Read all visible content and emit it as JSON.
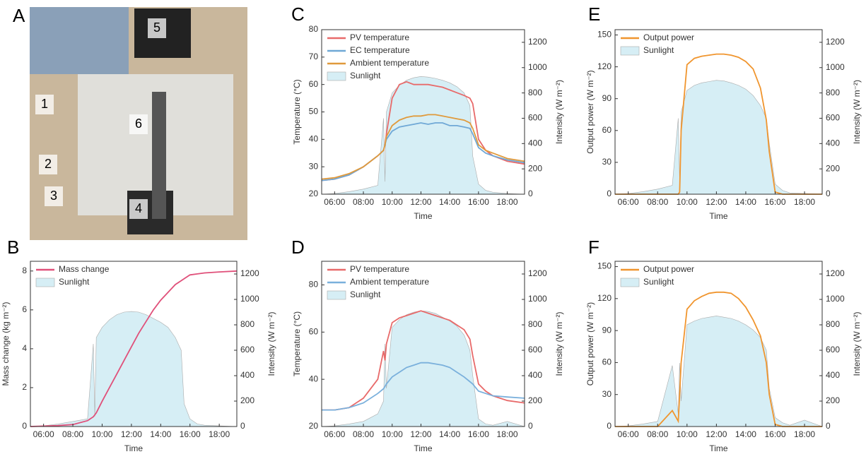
{
  "photo": {
    "panel_label": "A",
    "labels": [
      "1",
      "2",
      "3",
      "4",
      "5",
      "6"
    ]
  },
  "chart_data": [
    {
      "type": "line",
      "panel_label": "B",
      "xlabel": "Time",
      "ylabel": "Mass change (kg m⁻²)",
      "y2label": "Intensity (W m⁻²)",
      "xlim": [
        5.1,
        19.2
      ],
      "xticks": [
        {
          "value": 6,
          "label": "06:00"
        },
        {
          "value": 8,
          "label": "08:00"
        },
        {
          "value": 10,
          "label": "10:00"
        },
        {
          "value": 12,
          "label": "12:00"
        },
        {
          "value": 14,
          "label": "14:00"
        },
        {
          "value": 16,
          "label": "16:00"
        },
        {
          "value": 18,
          "label": "18:00"
        }
      ],
      "ylim": [
        0,
        8.5
      ],
      "yticks": [
        0,
        2,
        4,
        6,
        8
      ],
      "y2lim": [
        0,
        1300
      ],
      "y2ticks": [
        0,
        200,
        400,
        600,
        800,
        1000,
        1200
      ],
      "x": [
        5.1,
        6,
        7,
        8,
        9,
        9.4,
        9.5,
        9.6,
        10,
        10.5,
        11,
        11.5,
        12,
        12.5,
        13,
        13.5,
        14,
        14.5,
        15,
        15.4,
        15.6,
        16,
        16.5,
        17,
        18,
        19.2
      ],
      "series": [
        {
          "name": "Mass change",
          "color": "#e0507a",
          "values": [
            0,
            0.02,
            0.05,
            0.1,
            0.3,
            0.5,
            0.6,
            0.7,
            1.3,
            2.0,
            2.7,
            3.4,
            4.1,
            4.8,
            5.4,
            6.0,
            6.5,
            6.9,
            7.3,
            7.5,
            7.6,
            7.8,
            7.85,
            7.9,
            7.95,
            8.0
          ]
        },
        {
          "name": "Sunlight",
          "color": "#d6eef5",
          "style": "area",
          "axis": "y2",
          "values": [
            0,
            5,
            20,
            40,
            60,
            650,
            80,
            700,
            780,
            840,
            880,
            900,
            905,
            900,
            880,
            850,
            820,
            780,
            700,
            600,
            180,
            60,
            20,
            10,
            5,
            0
          ]
        }
      ]
    },
    {
      "type": "line",
      "panel_label": "C",
      "xlabel": "Time",
      "ylabel": "Temperature (°C)",
      "y2label": "Intensity (W m⁻²)",
      "xlim": [
        5.1,
        19.2
      ],
      "xticks": [
        {
          "value": 6,
          "label": "06:00"
        },
        {
          "value": 8,
          "label": "08:00"
        },
        {
          "value": 10,
          "label": "10:00"
        },
        {
          "value": 12,
          "label": "12:00"
        },
        {
          "value": 14,
          "label": "14:00"
        },
        {
          "value": 16,
          "label": "16:00"
        },
        {
          "value": 18,
          "label": "18:00"
        }
      ],
      "ylim": [
        20,
        80
      ],
      "yticks": [
        20,
        30,
        40,
        50,
        60,
        70,
        80
      ],
      "y2lim": [
        0,
        1300
      ],
      "y2ticks": [
        0,
        200,
        400,
        600,
        800,
        1000,
        1200
      ],
      "x": [
        5.1,
        6,
        7,
        8,
        9,
        9.4,
        9.5,
        9.6,
        10,
        10.5,
        11,
        11.5,
        12,
        12.5,
        13,
        13.5,
        14,
        14.5,
        15,
        15.4,
        15.6,
        16,
        16.5,
        17,
        18,
        19.2
      ],
      "series": [
        {
          "name": "PV temperature",
          "color": "#e86a6a",
          "values": [
            25,
            25.5,
            27,
            30,
            34,
            36,
            38,
            42,
            55,
            60,
            61,
            60,
            60,
            60,
            59.5,
            59,
            58,
            57,
            56,
            55,
            53,
            40,
            36,
            34,
            32,
            31
          ]
        },
        {
          "name": "EC temperature",
          "color": "#6fa8d6",
          "values": [
            25,
            25.5,
            27,
            30,
            34,
            36,
            38,
            40,
            43,
            44.5,
            45,
            45.5,
            46,
            45.5,
            46,
            46,
            45,
            45,
            44.5,
            44,
            42,
            37,
            35,
            34,
            32.5,
            31.5
          ]
        },
        {
          "name": "Ambient temperature",
          "color": "#e09a3c",
          "values": [
            25.5,
            26,
            27.5,
            30,
            34,
            36,
            38,
            41,
            45,
            47,
            48,
            48.5,
            48.5,
            49,
            49,
            48.5,
            48,
            47.5,
            47,
            46,
            44,
            38,
            36,
            35,
            33,
            32
          ]
        },
        {
          "name": "Sunlight",
          "color": "#d6eef5",
          "style": "area",
          "axis": "y2",
          "values": [
            0,
            5,
            20,
            40,
            70,
            600,
            100,
            650,
            800,
            860,
            900,
            920,
            930,
            925,
            915,
            900,
            880,
            850,
            800,
            700,
            300,
            80,
            30,
            15,
            5,
            0
          ]
        }
      ]
    },
    {
      "type": "line",
      "panel_label": "D",
      "xlabel": "Time",
      "ylabel": "Temperature (°C)",
      "y2label": "Intensity (W m⁻²)",
      "xlim": [
        5.1,
        19.2
      ],
      "xticks": [
        {
          "value": 6,
          "label": "06:00"
        },
        {
          "value": 8,
          "label": "08:00"
        },
        {
          "value": 10,
          "label": "10:00"
        },
        {
          "value": 12,
          "label": "12:00"
        },
        {
          "value": 14,
          "label": "14:00"
        },
        {
          "value": 16,
          "label": "16:00"
        },
        {
          "value": 18,
          "label": "18:00"
        }
      ],
      "ylim": [
        20,
        90
      ],
      "yticks": [
        20,
        40,
        60,
        80
      ],
      "y2lim": [
        0,
        1300
      ],
      "y2ticks": [
        0,
        200,
        400,
        600,
        800,
        1000,
        1200
      ],
      "x": [
        5.1,
        6,
        7,
        8,
        9,
        9.4,
        9.5,
        9.6,
        10,
        10.5,
        11,
        11.5,
        12,
        12.5,
        13,
        13.5,
        14,
        14.5,
        15,
        15.4,
        15.6,
        16,
        16.5,
        17,
        18,
        19.2
      ],
      "series": [
        {
          "name": "PV temperature",
          "color": "#e86a6a",
          "values": [
            27,
            27,
            28,
            32,
            40,
            52,
            48,
            55,
            64,
            66,
            67,
            68,
            69,
            68,
            67,
            66,
            65,
            63,
            61,
            57,
            50,
            38,
            35,
            33,
            31,
            30
          ]
        },
        {
          "name": "Ambient temperature",
          "color": "#7ab0dc",
          "values": [
            27,
            27,
            28,
            30,
            34,
            36,
            37,
            38,
            41,
            43,
            45,
            46,
            47,
            47,
            46.5,
            46,
            45,
            43,
            41,
            39,
            38,
            35,
            34,
            33,
            32.5,
            32
          ]
        },
        {
          "name": "Sunlight",
          "color": "#d6eef5",
          "style": "area",
          "axis": "y2",
          "values": [
            0,
            5,
            20,
            40,
            100,
            200,
            650,
            300,
            780,
            840,
            880,
            900,
            910,
            905,
            890,
            860,
            830,
            790,
            720,
            600,
            400,
            60,
            20,
            10,
            40,
            0
          ]
        }
      ]
    },
    {
      "type": "line",
      "panel_label": "E",
      "xlabel": "Time",
      "ylabel": "Output power (W m⁻²)",
      "y2label": "Intensity (W m⁻²)",
      "xlim": [
        5.1,
        19.2
      ],
      "xticks": [
        {
          "value": 6,
          "label": "06:00"
        },
        {
          "value": 8,
          "label": "08:00"
        },
        {
          "value": 10,
          "label": "10:00"
        },
        {
          "value": 12,
          "label": "12:00"
        },
        {
          "value": 14,
          "label": "14:00"
        },
        {
          "value": 16,
          "label": "16:00"
        },
        {
          "value": 18,
          "label": "18:00"
        }
      ],
      "ylim": [
        0,
        155
      ],
      "yticks": [
        0,
        30,
        60,
        90,
        120,
        150
      ],
      "y2lim": [
        0,
        1300
      ],
      "y2ticks": [
        0,
        200,
        400,
        600,
        800,
        1000,
        1200
      ],
      "x": [
        5.1,
        6,
        7,
        8,
        9,
        9.4,
        9.5,
        9.6,
        10,
        10.5,
        11,
        11.5,
        12,
        12.5,
        13,
        13.5,
        14,
        14.5,
        15,
        15.4,
        15.6,
        16,
        16.5,
        17,
        18,
        19.2
      ],
      "series": [
        {
          "name": "Output power",
          "color": "#f0952e",
          "values": [
            0,
            0,
            0,
            0,
            0,
            0,
            2,
            60,
            122,
            128,
            130,
            131,
            132,
            132,
            131,
            129,
            125,
            118,
            100,
            70,
            40,
            2,
            0,
            0,
            0,
            0
          ]
        },
        {
          "name": "Sunlight",
          "color": "#d6eef5",
          "style": "area",
          "axis": "y2",
          "values": [
            0,
            5,
            20,
            40,
            70,
            600,
            100,
            650,
            820,
            860,
            880,
            890,
            900,
            895,
            880,
            860,
            830,
            780,
            700,
            600,
            400,
            80,
            30,
            10,
            5,
            0
          ]
        }
      ]
    },
    {
      "type": "line",
      "panel_label": "F",
      "xlabel": "Time",
      "ylabel": "Output power (W m⁻²)",
      "y2label": "Intensity (W m⁻²)",
      "xlim": [
        5.1,
        19.2
      ],
      "xticks": [
        {
          "value": 6,
          "label": "06:00"
        },
        {
          "value": 8,
          "label": "08:00"
        },
        {
          "value": 10,
          "label": "10:00"
        },
        {
          "value": 12,
          "label": "12:00"
        },
        {
          "value": 14,
          "label": "14:00"
        },
        {
          "value": 16,
          "label": "16:00"
        },
        {
          "value": 18,
          "label": "18:00"
        }
      ],
      "ylim": [
        0,
        155
      ],
      "yticks": [
        0,
        30,
        60,
        90,
        120,
        150
      ],
      "y2lim": [
        0,
        1300
      ],
      "y2ticks": [
        0,
        200,
        400,
        600,
        800,
        1000,
        1200
      ],
      "x": [
        5.1,
        6,
        7,
        8,
        9,
        9.4,
        9.5,
        9.6,
        10,
        10.5,
        11,
        11.5,
        12,
        12.5,
        13,
        13.5,
        14,
        14.5,
        15,
        15.4,
        15.6,
        16,
        16.5,
        17,
        18,
        19.2
      ],
      "series": [
        {
          "name": "Output power",
          "color": "#f0952e",
          "values": [
            0,
            0,
            0,
            0,
            15,
            5,
            30,
            60,
            110,
            118,
            122,
            125,
            126,
            126,
            125,
            120,
            112,
            100,
            85,
            60,
            30,
            2,
            0,
            0,
            0,
            0
          ]
        },
        {
          "name": "Sunlight",
          "color": "#d6eef5",
          "style": "area",
          "axis": "y2",
          "values": [
            0,
            5,
            20,
            40,
            480,
            100,
            500,
            200,
            800,
            830,
            850,
            860,
            870,
            860,
            850,
            830,
            800,
            760,
            700,
            600,
            300,
            70,
            30,
            10,
            50,
            0
          ]
        }
      ]
    }
  ]
}
